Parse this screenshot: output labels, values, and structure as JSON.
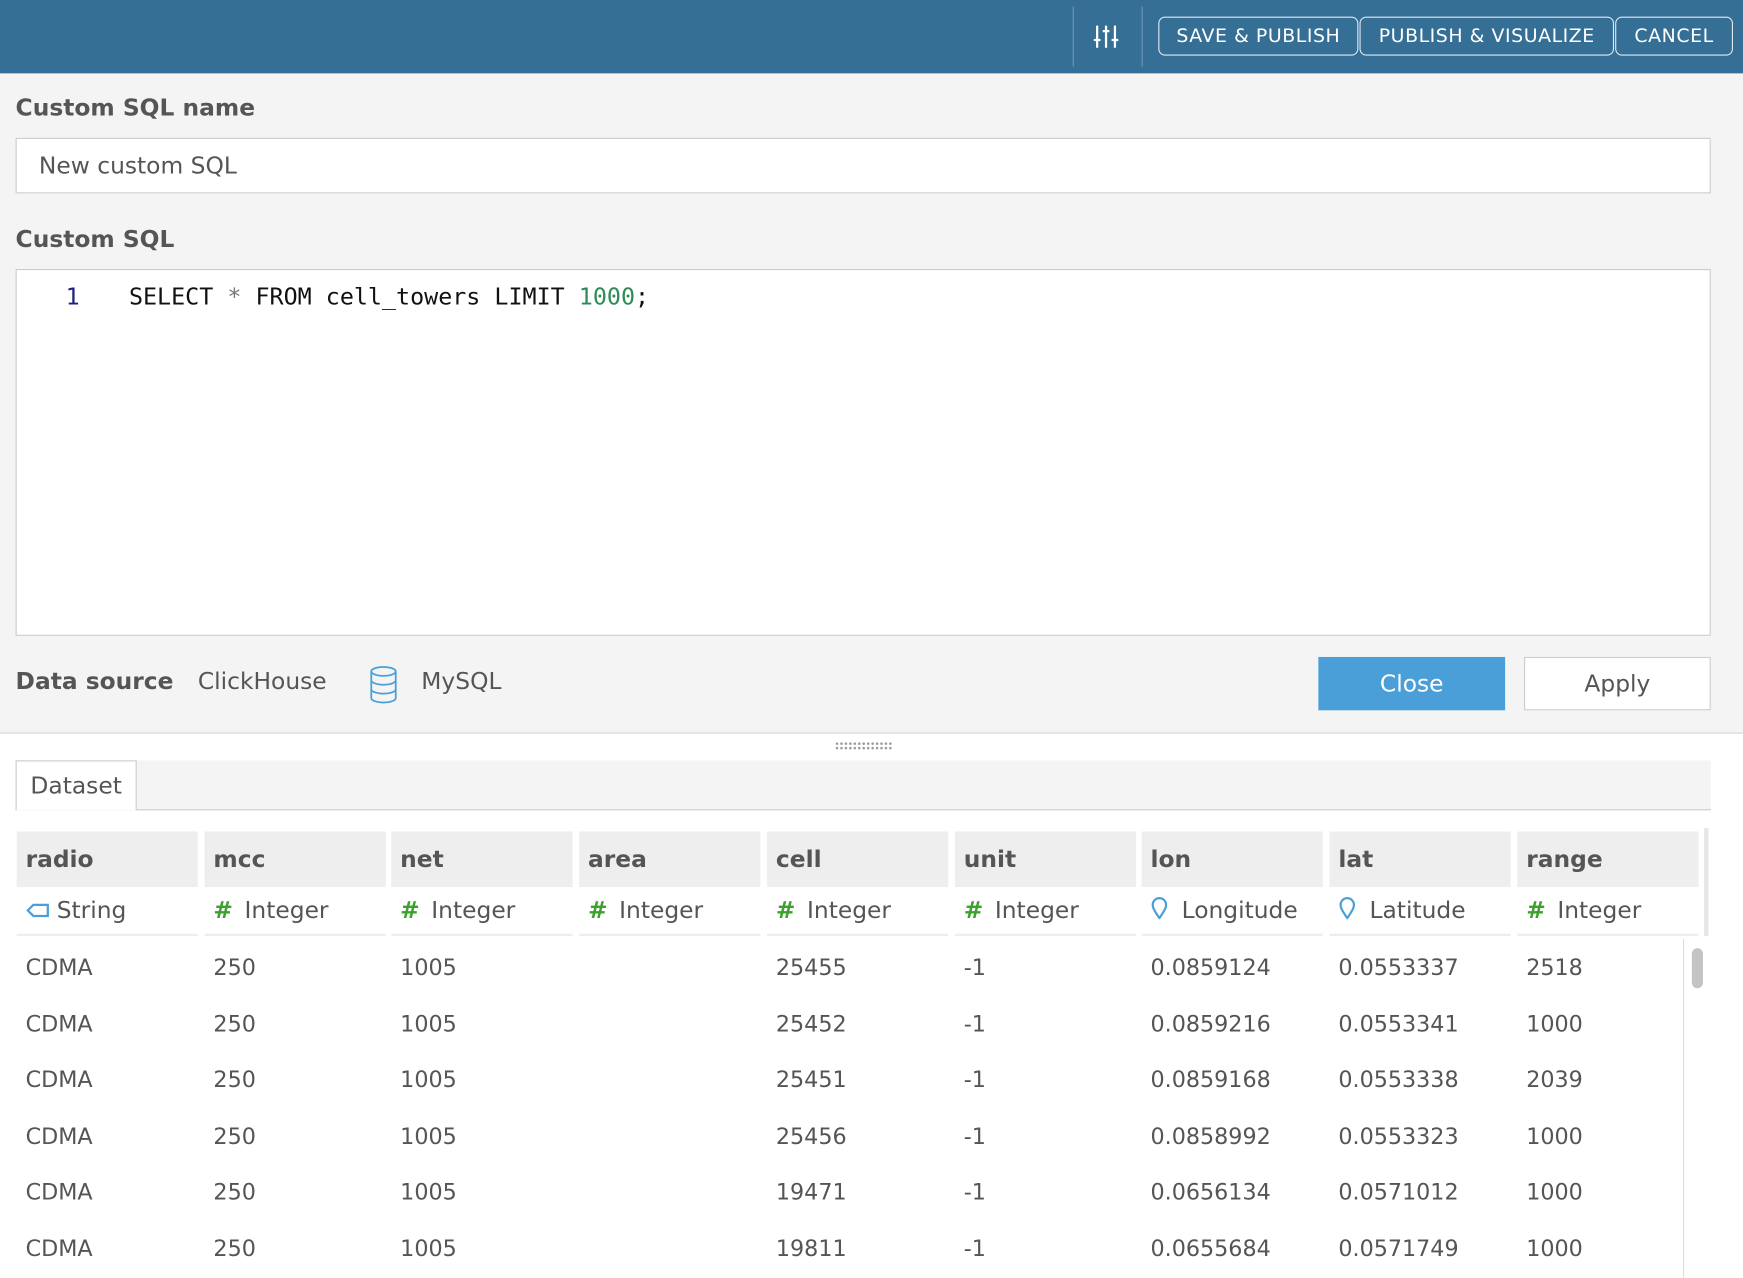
{
  "toolbar": {
    "filter_icon": "sliders-icon",
    "save_publish": "SAVE & PUBLISH",
    "publish_visualize": "PUBLISH & VISUALIZE",
    "cancel": "CANCEL"
  },
  "form": {
    "name_label": "Custom SQL name",
    "name_value": "New custom SQL",
    "sql_label": "Custom SQL",
    "sql_line_number": "1",
    "sql_tokens": {
      "kw1": "SELECT",
      "star": "*",
      "kw2": "FROM",
      "table": "cell_towers",
      "kw3": "LIMIT",
      "num": "1000",
      "semi": ";"
    }
  },
  "datasource": {
    "label": "Data source",
    "source": "ClickHouse",
    "db_icon": "database-icon",
    "db": "MySQL",
    "close": "Close",
    "apply": "Apply"
  },
  "colors": {
    "header": "#366f96",
    "primary": "#4a9fd9",
    "integer_icon": "#3aa12b",
    "geo_icon": "#4a9fd9"
  },
  "dataset": {
    "tab": "Dataset",
    "columns": [
      {
        "name": "radio",
        "type": "String",
        "icon": "string-tag-icon"
      },
      {
        "name": "mcc",
        "type": "Integer",
        "icon": "hash-icon"
      },
      {
        "name": "net",
        "type": "Integer",
        "icon": "hash-icon"
      },
      {
        "name": "area",
        "type": "Integer",
        "icon": "hash-icon"
      },
      {
        "name": "cell",
        "type": "Integer",
        "icon": "hash-icon"
      },
      {
        "name": "unit",
        "type": "Integer",
        "icon": "hash-icon"
      },
      {
        "name": "lon",
        "type": "Longitude",
        "icon": "map-pin-icon"
      },
      {
        "name": "lat",
        "type": "Latitude",
        "icon": "map-pin-icon"
      },
      {
        "name": "range",
        "type": "Integer",
        "icon": "hash-icon"
      }
    ],
    "rows": [
      [
        "CDMA",
        "250",
        "1005",
        "",
        "25455",
        "-1",
        "0.0859124",
        "0.0553337",
        "2518"
      ],
      [
        "CDMA",
        "250",
        "1005",
        "",
        "25452",
        "-1",
        "0.0859216",
        "0.0553341",
        "1000"
      ],
      [
        "CDMA",
        "250",
        "1005",
        "",
        "25451",
        "-1",
        "0.0859168",
        "0.0553338",
        "2039"
      ],
      [
        "CDMA",
        "250",
        "1005",
        "",
        "25456",
        "-1",
        "0.0858992",
        "0.0553323",
        "1000"
      ],
      [
        "CDMA",
        "250",
        "1005",
        "",
        "19471",
        "-1",
        "0.0656134",
        "0.0571012",
        "1000"
      ],
      [
        "CDMA",
        "250",
        "1005",
        "",
        "19811",
        "-1",
        "0.0655684",
        "0.0571749",
        "1000"
      ]
    ]
  }
}
